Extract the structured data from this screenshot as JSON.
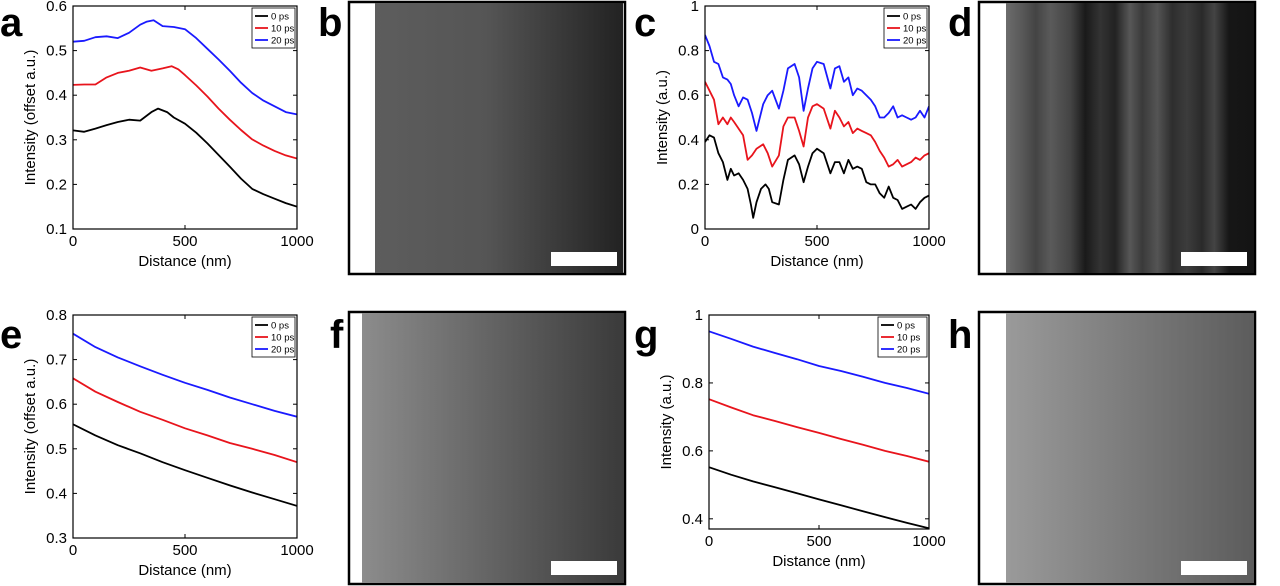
{
  "chart_data": [
    {
      "panel": "a",
      "type": "line",
      "xlabel": "Distance (nm)",
      "ylabel": "Intensity (offset a.u.)",
      "xlim": [
        0,
        1000
      ],
      "ylim": [
        0.1,
        0.6
      ],
      "xticks": [
        "0",
        "500",
        "1000"
      ],
      "yticks": [
        "0.1",
        "0.2",
        "0.3",
        "0.4",
        "0.5",
        "0.6"
      ],
      "legend_position": "top-right",
      "series": [
        {
          "name": "0 ps",
          "color": "#000000",
          "x": [
            0,
            50,
            100,
            150,
            200,
            250,
            300,
            350,
            380,
            420,
            450,
            500,
            550,
            600,
            650,
            700,
            750,
            800,
            850,
            900,
            950,
            1000
          ],
          "y": [
            0.321,
            0.318,
            0.325,
            0.333,
            0.34,
            0.345,
            0.343,
            0.362,
            0.37,
            0.362,
            0.35,
            0.336,
            0.316,
            0.292,
            0.266,
            0.24,
            0.213,
            0.19,
            0.178,
            0.168,
            0.158,
            0.15
          ]
        },
        {
          "name": "10 ps",
          "color": "#e8141c",
          "x": [
            0,
            50,
            100,
            150,
            200,
            250,
            300,
            350,
            400,
            440,
            470,
            500,
            550,
            600,
            650,
            700,
            750,
            800,
            850,
            900,
            950,
            1000
          ],
          "y": [
            0.423,
            0.424,
            0.424,
            0.44,
            0.45,
            0.455,
            0.462,
            0.455,
            0.46,
            0.465,
            0.458,
            0.445,
            0.422,
            0.397,
            0.37,
            0.345,
            0.322,
            0.301,
            0.287,
            0.275,
            0.265,
            0.258
          ]
        },
        {
          "name": "20 ps",
          "color": "#1a1aff",
          "x": [
            0,
            50,
            100,
            150,
            200,
            250,
            300,
            330,
            360,
            400,
            450,
            500,
            550,
            600,
            650,
            700,
            750,
            800,
            850,
            900,
            950,
            1000
          ],
          "y": [
            0.52,
            0.522,
            0.53,
            0.532,
            0.528,
            0.54,
            0.558,
            0.565,
            0.568,
            0.555,
            0.553,
            0.548,
            0.528,
            0.504,
            0.48,
            0.455,
            0.428,
            0.405,
            0.388,
            0.375,
            0.362,
            0.357
          ]
        }
      ]
    },
    {
      "panel": "c",
      "type": "line",
      "xlabel": "Distance (nm)",
      "ylabel": "Intensity (a.u.)",
      "xlim": [
        0,
        1000
      ],
      "ylim": [
        0,
        1
      ],
      "xticks": [
        "0",
        "500",
        "1000"
      ],
      "yticks": [
        "0",
        "0.2",
        "0.4",
        "0.6",
        "0.8",
        "1"
      ],
      "legend_position": "top-right",
      "series": [
        {
          "name": "0 ps",
          "color": "#000000",
          "x": [
            0,
            20,
            40,
            60,
            80,
            100,
            115,
            130,
            150,
            170,
            190,
            205,
            215,
            230,
            250,
            270,
            285,
            300,
            330,
            350,
            370,
            400,
            420,
            440,
            460,
            480,
            500,
            530,
            560,
            580,
            600,
            620,
            640,
            660,
            680,
            700,
            720,
            740,
            760,
            780,
            800,
            820,
            840,
            860,
            880,
            900,
            920,
            940,
            960,
            980,
            1000
          ],
          "y": [
            0.39,
            0.42,
            0.41,
            0.34,
            0.3,
            0.22,
            0.27,
            0.24,
            0.25,
            0.22,
            0.18,
            0.11,
            0.05,
            0.12,
            0.18,
            0.2,
            0.18,
            0.12,
            0.11,
            0.22,
            0.31,
            0.33,
            0.29,
            0.21,
            0.28,
            0.34,
            0.36,
            0.34,
            0.25,
            0.3,
            0.3,
            0.25,
            0.31,
            0.27,
            0.28,
            0.27,
            0.21,
            0.2,
            0.2,
            0.16,
            0.14,
            0.19,
            0.14,
            0.13,
            0.09,
            0.1,
            0.11,
            0.09,
            0.12,
            0.14,
            0.15
          ]
        },
        {
          "name": "10 ps",
          "color": "#e8141c",
          "x": [
            0,
            20,
            40,
            60,
            80,
            100,
            115,
            130,
            150,
            170,
            190,
            210,
            230,
            260,
            280,
            300,
            330,
            350,
            370,
            400,
            420,
            440,
            460,
            480,
            500,
            530,
            560,
            580,
            600,
            620,
            640,
            660,
            680,
            700,
            720,
            740,
            760,
            780,
            800,
            820,
            840,
            860,
            880,
            900,
            920,
            940,
            960,
            980,
            1000
          ],
          "y": [
            0.66,
            0.62,
            0.58,
            0.47,
            0.5,
            0.47,
            0.5,
            0.48,
            0.45,
            0.42,
            0.31,
            0.33,
            0.36,
            0.38,
            0.34,
            0.28,
            0.33,
            0.46,
            0.5,
            0.5,
            0.44,
            0.37,
            0.5,
            0.55,
            0.56,
            0.54,
            0.45,
            0.53,
            0.5,
            0.46,
            0.48,
            0.43,
            0.45,
            0.44,
            0.43,
            0.42,
            0.39,
            0.35,
            0.32,
            0.28,
            0.29,
            0.31,
            0.28,
            0.29,
            0.3,
            0.32,
            0.31,
            0.33,
            0.34
          ]
        },
        {
          "name": "20 ps",
          "color": "#1a1aff",
          "x": [
            0,
            20,
            40,
            60,
            80,
            100,
            115,
            130,
            150,
            170,
            190,
            210,
            230,
            260,
            280,
            300,
            330,
            350,
            370,
            400,
            420,
            440,
            460,
            480,
            500,
            530,
            560,
            580,
            600,
            620,
            640,
            660,
            680,
            700,
            720,
            740,
            760,
            780,
            800,
            820,
            840,
            860,
            880,
            900,
            920,
            940,
            960,
            980,
            1000
          ],
          "y": [
            0.87,
            0.82,
            0.75,
            0.74,
            0.68,
            0.67,
            0.65,
            0.6,
            0.55,
            0.59,
            0.58,
            0.52,
            0.44,
            0.56,
            0.6,
            0.62,
            0.54,
            0.62,
            0.72,
            0.74,
            0.68,
            0.53,
            0.63,
            0.72,
            0.75,
            0.74,
            0.63,
            0.72,
            0.73,
            0.66,
            0.68,
            0.6,
            0.63,
            0.62,
            0.6,
            0.58,
            0.55,
            0.5,
            0.5,
            0.52,
            0.55,
            0.5,
            0.51,
            0.5,
            0.49,
            0.5,
            0.53,
            0.5,
            0.55
          ]
        }
      ]
    },
    {
      "panel": "e",
      "type": "line",
      "xlabel": "Distance (nm)",
      "ylabel": "Intensity (offset a.u.)",
      "xlim": [
        0,
        1000
      ],
      "ylim": [
        0.3,
        0.8
      ],
      "xticks": [
        "0",
        "500",
        "1000"
      ],
      "yticks": [
        "0.3",
        "0.4",
        "0.5",
        "0.6",
        "0.7",
        "0.8"
      ],
      "legend_position": "top-right",
      "series": [
        {
          "name": "0 ps",
          "color": "#000000",
          "x": [
            0,
            100,
            200,
            300,
            400,
            500,
            600,
            700,
            800,
            900,
            1000
          ],
          "y": [
            0.555,
            0.53,
            0.508,
            0.49,
            0.47,
            0.452,
            0.435,
            0.418,
            0.402,
            0.387,
            0.372
          ]
        },
        {
          "name": "10 ps",
          "color": "#e8141c",
          "x": [
            0,
            100,
            200,
            300,
            400,
            500,
            600,
            700,
            800,
            900,
            1000
          ],
          "y": [
            0.658,
            0.628,
            0.605,
            0.583,
            0.565,
            0.546,
            0.53,
            0.513,
            0.5,
            0.486,
            0.47
          ]
        },
        {
          "name": "20 ps",
          "color": "#1a1aff",
          "x": [
            0,
            100,
            200,
            300,
            400,
            500,
            600,
            700,
            800,
            900,
            1000
          ],
          "y": [
            0.758,
            0.728,
            0.705,
            0.685,
            0.666,
            0.648,
            0.632,
            0.615,
            0.6,
            0.585,
            0.572
          ]
        }
      ]
    },
    {
      "panel": "g",
      "type": "line",
      "xlabel": "Distance (nm)",
      "ylabel": "Intensity (a.u.)",
      "xlim": [
        0,
        1000
      ],
      "ylim": [
        0.37,
        1
      ],
      "xticks": [
        "0",
        "500",
        "1000"
      ],
      "yticks": [
        "0.4",
        "0.6",
        "0.8",
        "1"
      ],
      "legend_position": "top-right",
      "series": [
        {
          "name": "0 ps",
          "color": "#000000",
          "x": [
            0,
            100,
            200,
            300,
            400,
            500,
            600,
            700,
            800,
            900,
            1000
          ],
          "y": [
            0.552,
            0.53,
            0.51,
            0.493,
            0.475,
            0.457,
            0.44,
            0.422,
            0.405,
            0.388,
            0.372
          ]
        },
        {
          "name": "10 ps",
          "color": "#e8141c",
          "x": [
            0,
            100,
            200,
            300,
            400,
            500,
            600,
            700,
            800,
            900,
            1000
          ],
          "y": [
            0.752,
            0.728,
            0.705,
            0.688,
            0.67,
            0.653,
            0.635,
            0.618,
            0.6,
            0.585,
            0.568
          ]
        },
        {
          "name": "20 ps",
          "color": "#1a1aff",
          "x": [
            0,
            100,
            200,
            300,
            400,
            500,
            600,
            700,
            800,
            900,
            1000
          ],
          "y": [
            0.952,
            0.93,
            0.907,
            0.888,
            0.87,
            0.85,
            0.835,
            0.818,
            0.8,
            0.785,
            0.768
          ]
        }
      ]
    }
  ],
  "panels": {
    "a": "a",
    "b": "b",
    "c": "c",
    "d": "d",
    "e": "e",
    "f": "f",
    "g": "g",
    "h": "h"
  },
  "images": {
    "b": {
      "description_colors": [
        "#5a5a5a",
        "#222222"
      ]
    },
    "d": {
      "description_colors": [
        "#777777",
        "#111111"
      ]
    },
    "f": {
      "description_colors": [
        "#8c8c8c",
        "#3a3a3a"
      ]
    },
    "h": {
      "description_colors": [
        "#9a9a9a",
        "#5a5a5a"
      ]
    }
  }
}
